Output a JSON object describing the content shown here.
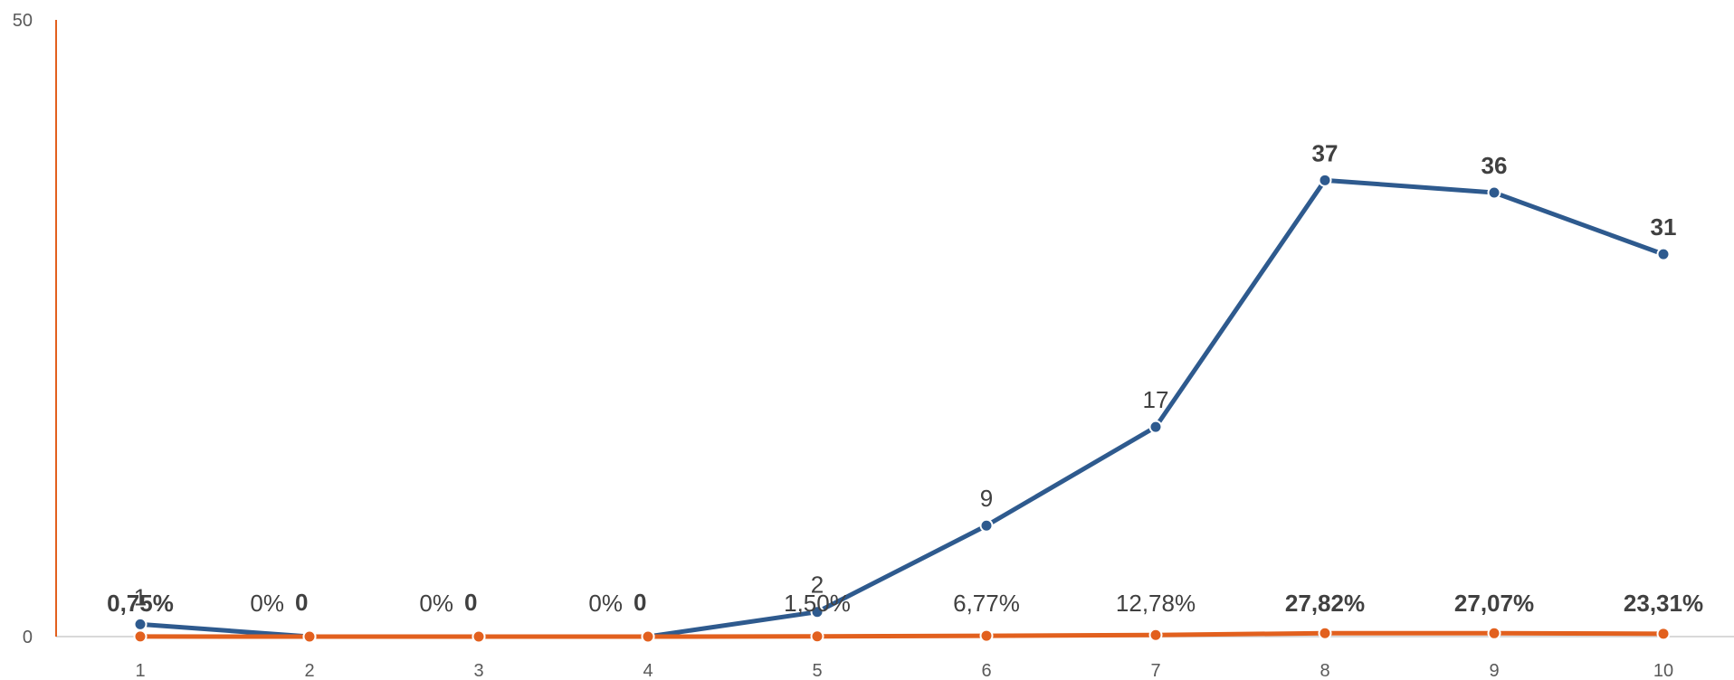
{
  "chart_data": {
    "type": "line",
    "categories": [
      "1",
      "2",
      "3",
      "4",
      "5",
      "6",
      "7",
      "8",
      "9",
      "10"
    ],
    "ylim": [
      0,
      50
    ],
    "y_ticks": [
      "0",
      "50"
    ],
    "grid": false,
    "series": [
      {
        "color": "#2E5A8E",
        "values": [
          1,
          0,
          0,
          0,
          2,
          9,
          17,
          37,
          36,
          31
        ],
        "labels": [
          "1",
          "0",
          "0",
          "0",
          "2",
          "9",
          "17",
          "37",
          "36",
          "31"
        ],
        "bold": [
          false,
          true,
          true,
          true,
          false,
          false,
          false,
          true,
          true,
          true
        ]
      },
      {
        "color": "#E2601E",
        "values": [
          0.0075,
          0,
          0,
          0,
          0.015,
          0.0677,
          0.1278,
          0.2782,
          0.2707,
          0.2331
        ],
        "labels": [
          "0,75%",
          "0%",
          "0%",
          "0%",
          "1,50%",
          "6,77%",
          "12,78%",
          "27,82%",
          "27,07%",
          "23,31%"
        ],
        "bold": [
          true,
          false,
          false,
          false,
          false,
          false,
          false,
          true,
          true,
          true
        ]
      }
    ],
    "axis_color": "#E2601E",
    "baseline_color": "#D9D9D9"
  }
}
